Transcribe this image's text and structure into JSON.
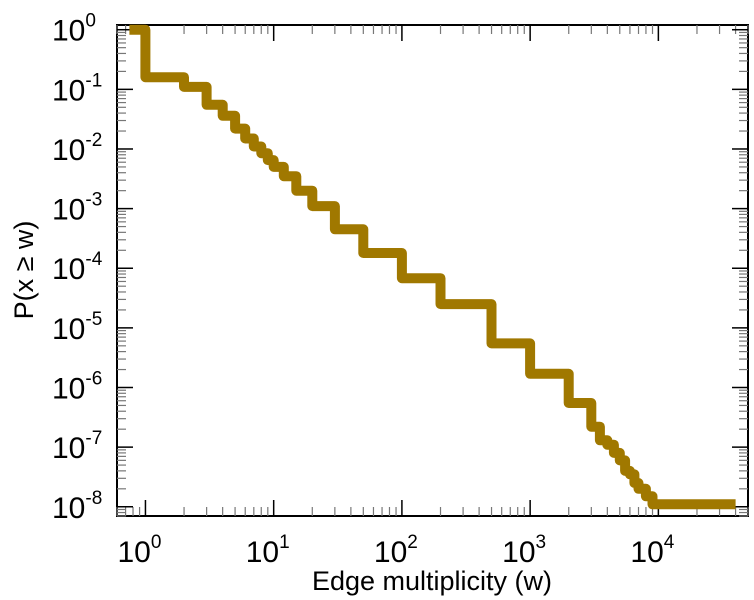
{
  "chart_data": {
    "type": "line",
    "title": "",
    "xlabel": "Edge multiplicity (w)",
    "ylabel": "P(x ≥ w)",
    "xscale": "log",
    "yscale": "log",
    "xlim": [
      0.6,
      50000
    ],
    "ylim": [
      7e-09,
      1.2
    ],
    "grid": false,
    "legend": "none",
    "x_ticks": [
      {
        "base": "10",
        "exp": "0",
        "value": 1
      },
      {
        "base": "10",
        "exp": "1",
        "value": 10
      },
      {
        "base": "10",
        "exp": "2",
        "value": 100
      },
      {
        "base": "10",
        "exp": "3",
        "value": 1000
      },
      {
        "base": "10",
        "exp": "4",
        "value": 10000
      }
    ],
    "y_ticks": [
      {
        "base": "10",
        "exp": "0",
        "value": 1
      },
      {
        "base": "10",
        "exp": "-1",
        "value": 0.1
      },
      {
        "base": "10",
        "exp": "-2",
        "value": 0.01
      },
      {
        "base": "10",
        "exp": "-3",
        "value": 0.001
      },
      {
        "base": "10",
        "exp": "-4",
        "value": 0.0001
      },
      {
        "base": "10",
        "exp": "-5",
        "value": 1e-05
      },
      {
        "base": "10",
        "exp": "-6",
        "value": 1e-06
      },
      {
        "base": "10",
        "exp": "-7",
        "value": 1e-07
      },
      {
        "base": "10",
        "exp": "-8",
        "value": 1e-08
      }
    ],
    "series": [
      {
        "color": "#a07800",
        "step": true,
        "x": [
          0.75,
          1,
          2,
          3,
          4,
          5,
          6,
          7,
          8,
          9,
          10,
          12,
          15,
          20,
          30,
          50,
          100,
          200,
          500,
          1000,
          2000,
          3000,
          3500,
          4000,
          4500,
          5000,
          5500,
          6000,
          6500,
          7000,
          8000,
          9000,
          40000
        ],
        "y": [
          1.0,
          0.16,
          0.11,
          0.055,
          0.036,
          0.022,
          0.015,
          0.011,
          0.0085,
          0.0065,
          0.005,
          0.0035,
          0.002,
          0.0011,
          0.00045,
          0.00018,
          6.8e-05,
          2.5e-05,
          5.5e-06,
          1.7e-06,
          5.5e-07,
          2.2e-07,
          1.3e-07,
          1.1e-07,
          8e-08,
          6e-08,
          4e-08,
          3.5e-08,
          2.5e-08,
          2e-08,
          1.5e-08,
          1.1e-08,
          1.1e-08
        ]
      }
    ]
  }
}
